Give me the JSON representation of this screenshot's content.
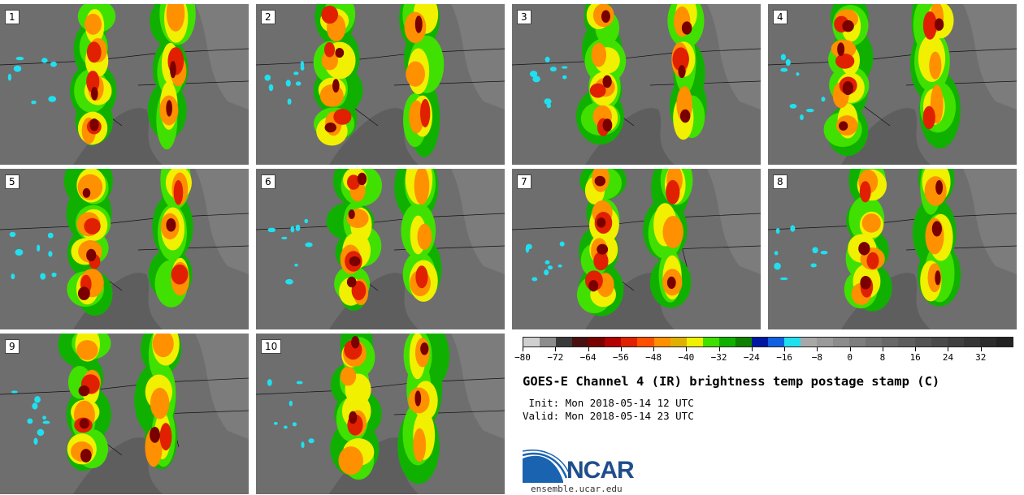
{
  "panels": [
    {
      "label": "1"
    },
    {
      "label": "2"
    },
    {
      "label": "3"
    },
    {
      "label": "4"
    },
    {
      "label": "5"
    },
    {
      "label": "6"
    },
    {
      "label": "7"
    },
    {
      "label": "8"
    },
    {
      "label": "9"
    },
    {
      "label": "10"
    }
  ],
  "colorbar": {
    "colors": [
      "#cfcfcf",
      "#8c8c8c",
      "#3a3a3a",
      "#4a1010",
      "#7a0000",
      "#b30000",
      "#e02000",
      "#ff5000",
      "#ff9000",
      "#e0b000",
      "#f0f000",
      "#40e000",
      "#10b000",
      "#108000",
      "#0018a0",
      "#1060e0",
      "#20e0f0",
      "#a8a8a8",
      "#9a9a9a",
      "#8c8c8c",
      "#7e7e7e",
      "#727272",
      "#686868",
      "#5e5e5e",
      "#545454",
      "#4a4a4a",
      "#404040",
      "#363636",
      "#2c2c2c",
      "#222222"
    ],
    "min": -80,
    "max": 40,
    "ticks": [
      "-80",
      "-72",
      "-64",
      "-56",
      "-48",
      "-40",
      "-32",
      "-24",
      "-16",
      "-8",
      "0",
      "8",
      "16",
      "24",
      "32"
    ]
  },
  "title": "GOES-E Channel 4 (IR) brightness temp postage stamp (C)",
  "init": " Init: Mon 2018-05-14 12 UTC",
  "valid": "Valid: Mon 2018-05-14 23 UTC",
  "logo": {
    "text": "NCAR",
    "site": "ensemble.ucar.edu"
  }
}
